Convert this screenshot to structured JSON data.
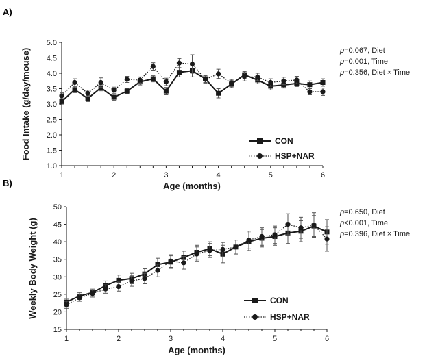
{
  "chart_data": [
    {
      "panel": "A)",
      "type": "line",
      "xlabel": "Age (months)",
      "ylabel": "Food Intake (g/day/mouse)",
      "xlim": [
        1,
        6
      ],
      "ylim": [
        1.0,
        5.0
      ],
      "x_ticks": [
        "1",
        "2",
        "3",
        "4",
        "5",
        "6"
      ],
      "y_ticks": [
        "1.0",
        "1.5",
        "2.0",
        "2.5",
        "3.0",
        "3.5",
        "4.0",
        "4.5",
        "5.0"
      ],
      "grid": false,
      "legend_position": "bottom-right",
      "stats": [
        {
          "p": "p",
          "value": "=0.067, Diet"
        },
        {
          "p": "p",
          "value": "=0.001, Time"
        },
        {
          "p": "p",
          "value": "=0.356, Diet × Time"
        }
      ],
      "series": [
        {
          "name": "CON",
          "line": "solid",
          "marker": "square",
          "x": [
            1,
            1.25,
            1.5,
            1.75,
            2,
            2.25,
            2.5,
            2.75,
            3,
            3.25,
            3.5,
            3.75,
            4,
            4.25,
            4.5,
            4.75,
            5,
            5.25,
            5.5,
            5.75,
            6
          ],
          "y": [
            3.08,
            3.47,
            3.18,
            3.53,
            3.22,
            3.42,
            3.72,
            3.82,
            3.42,
            4.03,
            4.08,
            3.82,
            3.35,
            3.65,
            3.95,
            3.78,
            3.58,
            3.62,
            3.67,
            3.63,
            3.7
          ],
          "err": [
            0.1,
            0.1,
            0.1,
            0.1,
            0.1,
            0.08,
            0.1,
            0.1,
            0.12,
            0.15,
            0.2,
            0.12,
            0.15,
            0.12,
            0.12,
            0.12,
            0.12,
            0.1,
            0.1,
            0.12,
            0.12
          ]
        },
        {
          "name": "HSP+NAR",
          "line": "dotted",
          "marker": "circle",
          "x": [
            1,
            1.25,
            1.5,
            1.75,
            2,
            2.25,
            2.5,
            2.75,
            3,
            3.25,
            3.5,
            3.75,
            4,
            4.25,
            4.5,
            4.75,
            5,
            5.25,
            5.5,
            5.75,
            6
          ],
          "y": [
            3.27,
            3.7,
            3.35,
            3.7,
            3.45,
            3.8,
            3.78,
            4.22,
            3.72,
            4.33,
            4.3,
            3.8,
            3.98,
            3.68,
            3.9,
            3.88,
            3.7,
            3.75,
            3.78,
            3.4,
            3.4
          ],
          "err": [
            0.1,
            0.12,
            0.1,
            0.15,
            0.1,
            0.1,
            0.1,
            0.12,
            0.12,
            0.15,
            0.3,
            0.12,
            0.15,
            0.12,
            0.15,
            0.12,
            0.12,
            0.12,
            0.12,
            0.1,
            0.12
          ]
        }
      ]
    },
    {
      "panel": "B)",
      "type": "line",
      "xlabel": "Age (months)",
      "ylabel": "Weekly Body Weight (g)",
      "xlim": [
        1,
        6
      ],
      "ylim": [
        15,
        50
      ],
      "x_ticks": [
        "1",
        "2",
        "3",
        "4",
        "5",
        "6"
      ],
      "y_ticks": [
        "15",
        "20",
        "25",
        "30",
        "35",
        "40",
        "45",
        "50"
      ],
      "grid": false,
      "legend_position": "bottom-right",
      "stats": [
        {
          "p": "p",
          "value": "=0.650, Diet"
        },
        {
          "p": "p",
          "value": "<0.001, Time"
        },
        {
          "p": "p",
          "value": "=0.396, Diet × Time"
        }
      ],
      "series": [
        {
          "name": "CON",
          "line": "solid",
          "marker": "square",
          "x": [
            1,
            1.25,
            1.5,
            1.75,
            2,
            2.25,
            2.5,
            2.75,
            3,
            3.25,
            3.5,
            3.75,
            4,
            4.25,
            4.5,
            4.75,
            5,
            5.25,
            5.5,
            5.75,
            6
          ],
          "y": [
            22.8,
            24.5,
            25.5,
            27.5,
            29.0,
            29.5,
            30.8,
            33.5,
            34.2,
            35.5,
            37.0,
            38.0,
            36.5,
            38.5,
            40.0,
            41.0,
            41.5,
            42.5,
            43.0,
            44.5,
            42.8
          ],
          "err": [
            1.0,
            1.0,
            1.0,
            1.3,
            1.5,
            1.5,
            1.5,
            1.8,
            1.8,
            1.8,
            2.0,
            2.0,
            2.5,
            2.0,
            2.5,
            2.5,
            2.5,
            3.0,
            3.0,
            3.0,
            3.5
          ]
        },
        {
          "name": "HSP+NAR",
          "line": "dotted",
          "marker": "circle",
          "x": [
            1,
            1.25,
            1.5,
            1.75,
            2,
            2.25,
            2.5,
            2.75,
            3,
            3.25,
            3.5,
            3.75,
            4,
            4.25,
            4.5,
            4.75,
            5,
            5.25,
            5.5,
            5.75,
            6
          ],
          "y": [
            22.0,
            24.0,
            25.2,
            26.5,
            27.2,
            28.8,
            29.5,
            31.8,
            34.5,
            34.0,
            36.5,
            37.5,
            37.8,
            38.5,
            40.5,
            41.5,
            42.0,
            45.0,
            44.0,
            44.8,
            40.8
          ],
          "err": [
            1.0,
            1.0,
            1.0,
            1.2,
            1.3,
            1.5,
            1.5,
            1.8,
            1.8,
            1.8,
            2.0,
            2.0,
            2.0,
            2.0,
            2.5,
            2.5,
            2.5,
            3.0,
            3.0,
            3.5,
            3.5
          ]
        }
      ]
    }
  ]
}
